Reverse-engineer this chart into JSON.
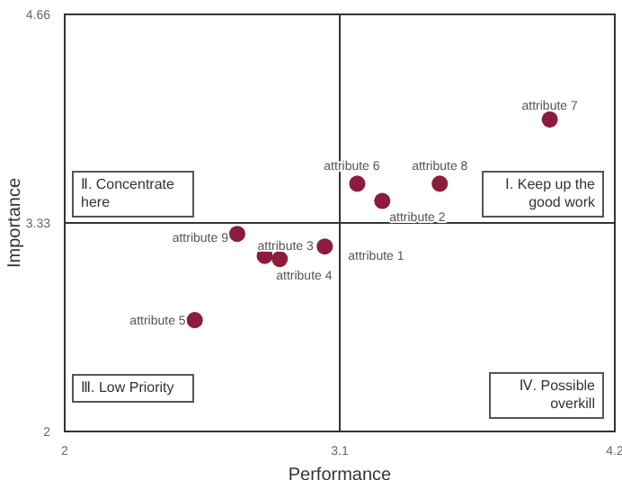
{
  "chart_data": {
    "type": "scatter",
    "xlabel": "Performance",
    "ylabel": "Importance",
    "series": [
      {
        "color": "#8b1c3c",
        "x": [
          3.94,
          3.17,
          3.5,
          3.27,
          2.69,
          2.8,
          2.86,
          3.04,
          2.52
        ],
        "values": [
          3.99,
          3.58,
          3.58,
          3.47,
          3.26,
          3.12,
          3.1,
          3.18,
          2.71
        ]
      }
    ],
    "xlim": [
      2,
      4.2
    ],
    "xticks": [
      2,
      3.1,
      4.2
    ],
    "ylim": [
      2,
      4.66
    ],
    "yticks": [
      2,
      3.33,
      4.66
    ],
    "legend": false,
    "marker": "circle",
    "ref_lines": [
      {
        "axis": "x",
        "value": 3.1,
        "label": null,
        "color": "#333333"
      },
      {
        "axis": "y",
        "value": 3.33,
        "label": null,
        "color": "#333333"
      }
    ],
    "annotations": [
      {
        "text": "attribute 7",
        "x": 3.94,
        "y": 3.99
      },
      {
        "text": "attribute 6",
        "x": 3.17,
        "y": 3.58
      },
      {
        "text": "attribute 8",
        "x": 3.5,
        "y": 3.58
      },
      {
        "text": "attribute 2",
        "x": 3.27,
        "y": 3.47
      },
      {
        "text": "attribute 9",
        "x": 2.69,
        "y": 3.26
      },
      {
        "text": "attribute 3",
        "x": 2.8,
        "y": 3.12
      },
      {
        "text": "attribute 4",
        "x": 2.86,
        "y": 3.1
      },
      {
        "text": "attribute 1",
        "x": 3.04,
        "y": 3.18
      },
      {
        "text": "attribute 5",
        "x": 2.52,
        "y": 2.71
      },
      "Ⅱ. Concentrate here",
      "Ⅰ. Keep up the good work",
      "Ⅲ. Low Priority",
      "Ⅳ. Possible overkill"
    ]
  }
}
